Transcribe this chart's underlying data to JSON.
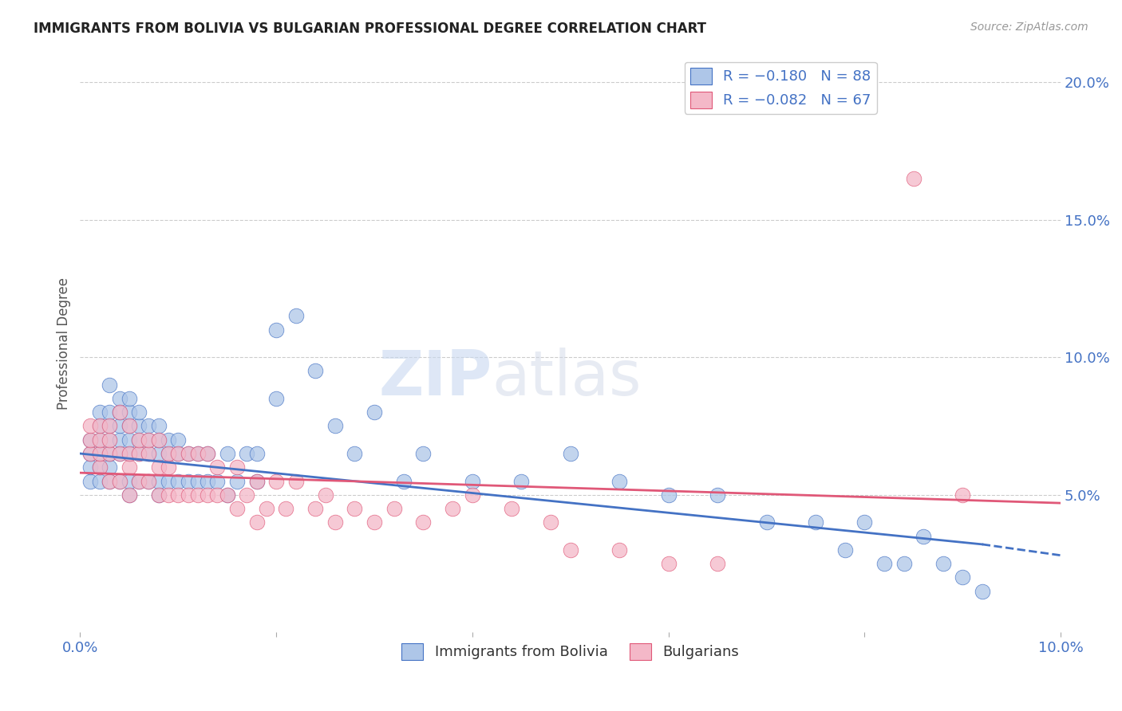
{
  "title": "IMMIGRANTS FROM BOLIVIA VS BULGARIAN PROFESSIONAL DEGREE CORRELATION CHART",
  "source": "Source: ZipAtlas.com",
  "ylabel": "Professional Degree",
  "xlim": [
    0.0,
    0.1
  ],
  "ylim": [
    0.0,
    0.21
  ],
  "series1_color": "#aec6e8",
  "series2_color": "#f4b8c8",
  "trendline1_color": "#4472c4",
  "trendline2_color": "#e05878",
  "bolivia_x": [
    0.001,
    0.001,
    0.001,
    0.001,
    0.002,
    0.002,
    0.002,
    0.002,
    0.002,
    0.002,
    0.003,
    0.003,
    0.003,
    0.003,
    0.003,
    0.003,
    0.003,
    0.004,
    0.004,
    0.004,
    0.004,
    0.004,
    0.004,
    0.005,
    0.005,
    0.005,
    0.005,
    0.005,
    0.005,
    0.005,
    0.006,
    0.006,
    0.006,
    0.006,
    0.006,
    0.007,
    0.007,
    0.007,
    0.007,
    0.008,
    0.008,
    0.008,
    0.008,
    0.008,
    0.009,
    0.009,
    0.009,
    0.01,
    0.01,
    0.01,
    0.011,
    0.011,
    0.012,
    0.012,
    0.013,
    0.013,
    0.014,
    0.015,
    0.015,
    0.016,
    0.017,
    0.018,
    0.018,
    0.02,
    0.02,
    0.022,
    0.024,
    0.026,
    0.028,
    0.03,
    0.033,
    0.035,
    0.04,
    0.045,
    0.05,
    0.055,
    0.06,
    0.065,
    0.07,
    0.075,
    0.078,
    0.08,
    0.082,
    0.084,
    0.086,
    0.088,
    0.09,
    0.092
  ],
  "bolivia_y": [
    0.055,
    0.06,
    0.065,
    0.07,
    0.055,
    0.06,
    0.065,
    0.07,
    0.075,
    0.08,
    0.055,
    0.06,
    0.065,
    0.07,
    0.075,
    0.08,
    0.09,
    0.055,
    0.065,
    0.07,
    0.075,
    0.08,
    0.085,
    0.05,
    0.055,
    0.065,
    0.07,
    0.075,
    0.08,
    0.085,
    0.055,
    0.065,
    0.07,
    0.075,
    0.08,
    0.055,
    0.065,
    0.07,
    0.075,
    0.05,
    0.055,
    0.065,
    0.07,
    0.075,
    0.055,
    0.065,
    0.07,
    0.055,
    0.065,
    0.07,
    0.055,
    0.065,
    0.055,
    0.065,
    0.055,
    0.065,
    0.055,
    0.05,
    0.065,
    0.055,
    0.065,
    0.055,
    0.065,
    0.11,
    0.085,
    0.115,
    0.095,
    0.075,
    0.065,
    0.08,
    0.055,
    0.065,
    0.055,
    0.055,
    0.065,
    0.055,
    0.05,
    0.05,
    0.04,
    0.04,
    0.03,
    0.04,
    0.025,
    0.025,
    0.035,
    0.025,
    0.02,
    0.015
  ],
  "bulgarian_x": [
    0.001,
    0.001,
    0.001,
    0.002,
    0.002,
    0.002,
    0.002,
    0.003,
    0.003,
    0.003,
    0.003,
    0.004,
    0.004,
    0.004,
    0.005,
    0.005,
    0.005,
    0.005,
    0.006,
    0.006,
    0.006,
    0.007,
    0.007,
    0.007,
    0.008,
    0.008,
    0.008,
    0.009,
    0.009,
    0.009,
    0.01,
    0.01,
    0.011,
    0.011,
    0.012,
    0.012,
    0.013,
    0.013,
    0.014,
    0.014,
    0.015,
    0.016,
    0.016,
    0.017,
    0.018,
    0.018,
    0.019,
    0.02,
    0.021,
    0.022,
    0.024,
    0.025,
    0.026,
    0.028,
    0.03,
    0.032,
    0.035,
    0.038,
    0.04,
    0.044,
    0.048,
    0.05,
    0.055,
    0.06,
    0.065,
    0.085,
    0.09
  ],
  "bulgarian_y": [
    0.065,
    0.07,
    0.075,
    0.06,
    0.065,
    0.07,
    0.075,
    0.055,
    0.065,
    0.07,
    0.075,
    0.055,
    0.065,
    0.08,
    0.05,
    0.06,
    0.065,
    0.075,
    0.055,
    0.065,
    0.07,
    0.055,
    0.065,
    0.07,
    0.05,
    0.06,
    0.07,
    0.05,
    0.06,
    0.065,
    0.05,
    0.065,
    0.05,
    0.065,
    0.05,
    0.065,
    0.05,
    0.065,
    0.05,
    0.06,
    0.05,
    0.045,
    0.06,
    0.05,
    0.04,
    0.055,
    0.045,
    0.055,
    0.045,
    0.055,
    0.045,
    0.05,
    0.04,
    0.045,
    0.04,
    0.045,
    0.04,
    0.045,
    0.05,
    0.045,
    0.04,
    0.03,
    0.03,
    0.025,
    0.025,
    0.165,
    0.05
  ],
  "trendline1_x0": 0.0,
  "trendline1_y0": 0.065,
  "trendline1_x1": 0.092,
  "trendline1_y1": 0.032,
  "trendline2_x0": 0.0,
  "trendline2_y0": 0.058,
  "trendline2_x1": 0.1,
  "trendline2_y1": 0.047,
  "trendline1_dash_x0": 0.092,
  "trendline1_dash_y0": 0.032,
  "trendline1_dash_x1": 0.1,
  "trendline1_dash_y1": 0.028
}
